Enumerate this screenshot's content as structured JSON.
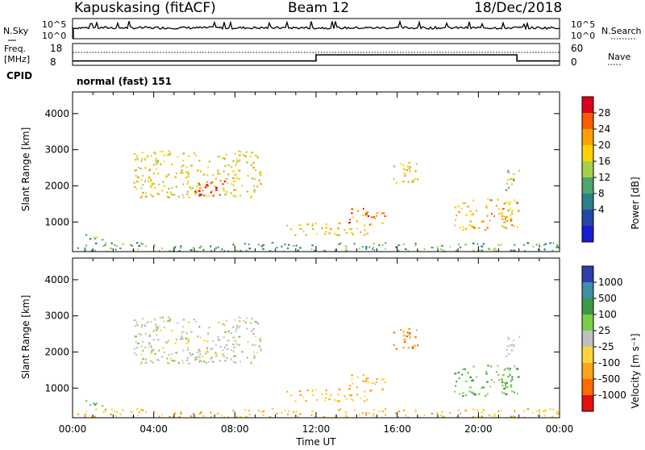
{
  "header": {
    "station": "Kapuskasing (fitACF)",
    "beam": "Beam 12",
    "date": "18/Dec/2018"
  },
  "top_panels": {
    "nsky_label": "N.Sky",
    "nsky_top": "10^5",
    "nsky_bottom": "10^0",
    "nsky_right_top": "10^5",
    "nsky_right_bottom": "10^0",
    "nsearch_label": "N.Search",
    "freq_label": "Freq.",
    "freq_unit": "[MHz]",
    "freq_top": "18",
    "freq_bottom": "8",
    "nave_top": "60",
    "nave_bottom": "0",
    "nave_label": "Nave",
    "cpid_label": "CPID",
    "cpid_value": "normal (fast) 151"
  },
  "power_panel": {
    "colorbar_label": "Power [dB]",
    "colorbar_ticks": [
      "28",
      "24",
      "20",
      "16",
      "12",
      "8",
      "4"
    ],
    "colorbar_colors": [
      "#e0001c",
      "#ff5a00",
      "#ffa100",
      "#ffd200",
      "#a5d04a",
      "#4ea56e",
      "#2c7f87",
      "#2548a6",
      "#1a1ad8"
    ]
  },
  "velocity_panel": {
    "colorbar_label": "Velocity [m s⁻¹]",
    "colorbar_ticks": [
      "1000",
      "500",
      "100",
      "25",
      "-25",
      "-100",
      "-500",
      "-1000"
    ],
    "colorbar_colors": [
      "#2b3ea9",
      "#3f8fa6",
      "#3d9947",
      "#77d049",
      "#c0c0c0",
      "#ffd63a",
      "#ffa31a",
      "#ff6b00",
      "#e60e0e"
    ]
  },
  "chart_data": {
    "type": "heatmap",
    "xlabel": "Time UT",
    "ylabel": "Slant Range [km]",
    "xlim": [
      0,
      24
    ],
    "ylim": [
      180,
      4600
    ],
    "x_ticks": [
      "00:00",
      "04:00",
      "08:00",
      "12:00",
      "16:00",
      "20:00",
      "00:00"
    ],
    "y_ticks": [
      "1000",
      "2000",
      "3000",
      "4000"
    ],
    "frequency_mhz_steps": [
      {
        "start": 0,
        "end": 12,
        "value": 10
      },
      {
        "start": 12,
        "end": 21.9,
        "value": 12.8
      },
      {
        "start": 21.9,
        "end": 24,
        "value": 10
      }
    ],
    "echo_regions": [
      {
        "t0": 3.0,
        "t1": 9.3,
        "r0": 1700,
        "r1": 3000,
        "power_db": 18,
        "velocity": 0
      },
      {
        "t0": 6.0,
        "t1": 7.5,
        "r0": 1750,
        "r1": 2200,
        "power_db": 28,
        "velocity": 0
      },
      {
        "t0": 10.5,
        "t1": 14.5,
        "r0": 650,
        "r1": 1000,
        "power_db": 18,
        "velocity": -100
      },
      {
        "t0": 13.5,
        "t1": 15.5,
        "r0": 950,
        "r1": 1400,
        "power_db": 24,
        "velocity": -100
      },
      {
        "t0": 15.6,
        "t1": 17.0,
        "r0": 2100,
        "r1": 2700,
        "power_db": 18,
        "velocity": -500
      },
      {
        "t0": 18.7,
        "t1": 22.0,
        "r0": 800,
        "r1": 1650,
        "power_db": 20,
        "velocity": 100
      },
      {
        "t0": 21.3,
        "t1": 22.0,
        "r0": 1900,
        "r1": 2500,
        "power_db": 12,
        "velocity": 0
      },
      {
        "t0": 0.5,
        "t1": 1.5,
        "r0": 500,
        "r1": 700,
        "power_db": 12,
        "velocity": 100
      },
      {
        "t0": 0.0,
        "t1": 24.0,
        "r0": 180,
        "r1": 450,
        "power_db": 10,
        "velocity": -100
      }
    ]
  }
}
